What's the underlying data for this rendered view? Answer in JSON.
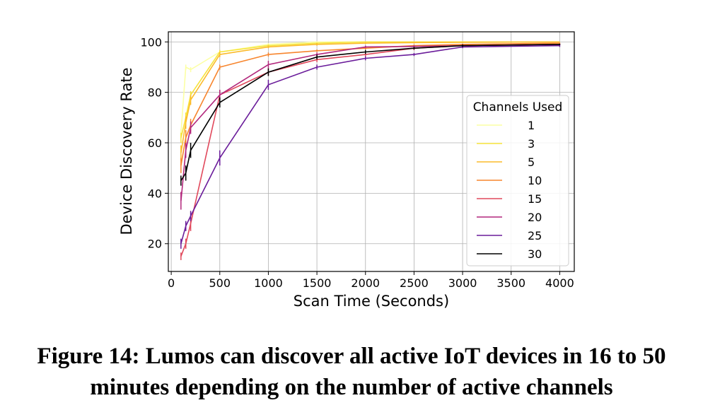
{
  "chart_data": {
    "type": "line",
    "title": "",
    "xlabel": "Scan Time (Seconds)",
    "ylabel": "Device Discovery Rate",
    "xlim": [
      -30,
      4150
    ],
    "ylim": [
      9,
      104
    ],
    "xticks": [
      0,
      500,
      1000,
      1500,
      2000,
      2500,
      3000,
      3500,
      4000
    ],
    "yticks": [
      20,
      40,
      60,
      80,
      100
    ],
    "grid": true,
    "legend": {
      "title": "Channels Used",
      "placement": "lower-right"
    },
    "x": [
      100,
      150,
      200,
      500,
      1000,
      1500,
      2000,
      2500,
      3000,
      4000
    ],
    "series": [
      {
        "name": "1",
        "color": "#fcffa4",
        "values": [
          64,
          90,
          89,
          96,
          99,
          100,
          100,
          100,
          100,
          100
        ],
        "errors": [
          1.5,
          1,
          1,
          0.5,
          0.5,
          0,
          0,
          0,
          0,
          0
        ]
      },
      {
        "name": "3",
        "color": "#f6e33c",
        "values": [
          62,
          70,
          79,
          96,
          98.5,
          99.5,
          100,
          100,
          100,
          100
        ],
        "errors": [
          2,
          2,
          1.5,
          0.8,
          0.5,
          0.3,
          0,
          0,
          0,
          0
        ]
      },
      {
        "name": "5",
        "color": "#fbbb2b",
        "values": [
          56,
          68,
          77,
          95,
          98,
          99,
          99.5,
          99.7,
          99.8,
          100
        ],
        "errors": [
          3,
          2.5,
          2,
          1,
          0.5,
          0.5,
          0.3,
          0.3,
          0.2,
          0
        ]
      },
      {
        "name": "10",
        "color": "#f7852d",
        "values": [
          51,
          62,
          67,
          90,
          95,
          96.5,
          97.5,
          98.5,
          99,
          99.5
        ],
        "errors": [
          3,
          3,
          2.5,
          1,
          0.8,
          0.5,
          0.5,
          0.4,
          0.3,
          0.2
        ]
      },
      {
        "name": "15",
        "color": "#e1495c",
        "values": [
          15,
          20,
          28,
          79,
          88,
          93,
          95,
          97.5,
          98.5,
          99
        ],
        "errors": [
          1.5,
          2,
          3,
          2,
          1.5,
          1,
          1,
          0.8,
          0.5,
          0.3
        ]
      },
      {
        "name": "20",
        "color": "#b2277c",
        "values": [
          37,
          57,
          66,
          79,
          91,
          95,
          98,
          98.2,
          98.5,
          99
        ],
        "errors": [
          3.5,
          3,
          2.5,
          2,
          1.5,
          0.8,
          0.5,
          0.5,
          0.4,
          0.3
        ]
      },
      {
        "name": "25",
        "color": "#6a1c9a",
        "values": [
          20,
          27,
          31,
          54,
          83,
          90,
          93.5,
          95,
          98,
          98.5
        ],
        "errors": [
          2,
          2,
          2,
          3,
          2,
          1,
          0.8,
          0.6,
          0.5,
          0.5
        ]
      },
      {
        "name": "30",
        "color": "#000000",
        "values": [
          45,
          48,
          57,
          76,
          88,
          94,
          96,
          97.5,
          98.5,
          99
        ],
        "errors": [
          2,
          3,
          3,
          2,
          1.5,
          1,
          0.8,
          0.5,
          0.5,
          0.3
        ]
      }
    ]
  },
  "caption": "Figure 14: Lumos can discover all active IoT devices in 16 to 50 minutes depending on the number of active channels"
}
